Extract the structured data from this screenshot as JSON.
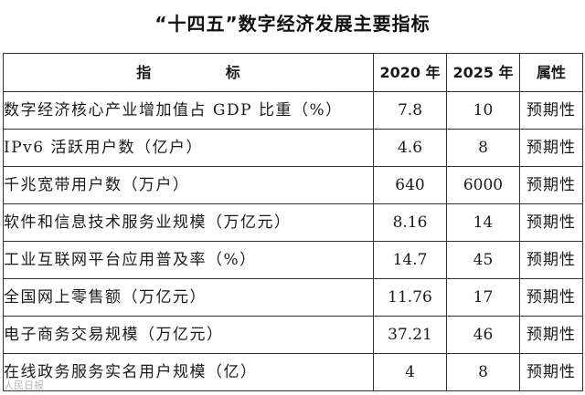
{
  "title": "“十四五”数字经济发展主要指标",
  "table": {
    "headers": {
      "name": "指  标",
      "y2020": "2020 年",
      "y2025": "2025 年",
      "attr": "属性"
    },
    "rows": [
      {
        "name": "数字经济核心产业增加值占 GDP 比重（%）",
        "y2020": "7.8",
        "y2025": "10",
        "attr": "预期性"
      },
      {
        "name": "IPv6 活跃用户数（亿户）",
        "y2020": "4.6",
        "y2025": "8",
        "attr": "预期性"
      },
      {
        "name": "千兆宽带用户数（万户）",
        "y2020": "640",
        "y2025": "6000",
        "attr": "预期性"
      },
      {
        "name": "软件和信息技术服务业规模（万亿元）",
        "y2020": "8.16",
        "y2025": "14",
        "attr": "预期性"
      },
      {
        "name": "工业互联网平台应用普及率（%）",
        "y2020": "14.7",
        "y2025": "45",
        "attr": "预期性"
      },
      {
        "name": "全国网上零售额（万亿元）",
        "y2020": "11.76",
        "y2025": "17",
        "attr": "预期性"
      },
      {
        "name": "电子商务交易规模（万亿元）",
        "y2020": "37.21",
        "y2025": "46",
        "attr": "预期性"
      },
      {
        "name": "在线政务服务实名用户规模（亿）",
        "y2020": "4",
        "y2025": "8",
        "attr": "预期性"
      }
    ]
  },
  "watermark": "人民日报"
}
